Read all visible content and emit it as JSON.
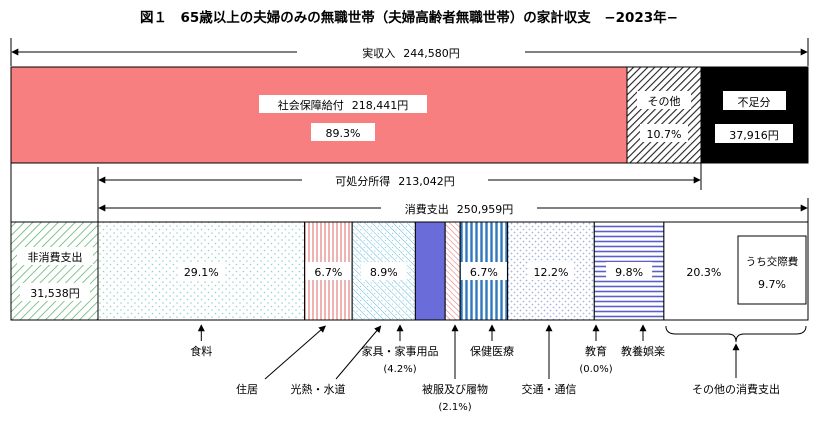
{
  "title": "図１　65歳以上の夫婦のみの無職世帯（夫婦高齢者無職世帯）の家計収支　−2023年−",
  "colors": {
    "social_security": "#f87f7f",
    "outline": "#000000",
    "deficit": "#000000",
    "transport": "#a9b3e0",
    "household_goods": "#6a6cd9",
    "medical": "#2f78c0",
    "non_consumption_hatch": "#4caa5c",
    "housing_hatch": "#e77f7f",
    "clothing_hatch": "#e77f7f",
    "utilities_hatch": "#5ab8d9",
    "culture_hatch": "#5b5fc7",
    "food_dots": "#8fd4cf",
    "other_hatch": "#222222"
  },
  "chart_data": {
    "type": "bar",
    "unit": "円",
    "income": {
      "label": "実収入",
      "amount_text": "244,580円",
      "amount": 244580,
      "segments": [
        {
          "key": "social_security",
          "label": "社会保障給付",
          "amount_text": "218,441円",
          "amount": 218441,
          "share_text": "89.3%",
          "share": 89.3
        },
        {
          "key": "other",
          "label": "その他",
          "share_text": "10.7%",
          "share": 10.7
        }
      ],
      "deficit": {
        "label": "不足分",
        "amount_text": "37,916円",
        "amount": 37916
      }
    },
    "disposable": {
      "label": "可処分所得",
      "amount_text": "213,042円",
      "amount": 213042
    },
    "expenditure": {
      "non_consumption": {
        "label": "非消費支出",
        "amount_text": "31,538円",
        "amount": 31538
      },
      "consumption": {
        "label": "消費支出",
        "amount_text": "250,959円",
        "amount": 250959,
        "segments": [
          {
            "key": "food",
            "label": "食料",
            "share_text": "29.1%",
            "share": 29.1
          },
          {
            "key": "housing",
            "label": "住居",
            "share_text": "6.7%",
            "share": 6.7
          },
          {
            "key": "utilities",
            "label": "光熱・水道",
            "share_text": "8.9%",
            "share": 8.9
          },
          {
            "key": "household_goods",
            "label": "家具・家事用品",
            "sub": "(4.2%)",
            "share_text": "",
            "share": 4.2
          },
          {
            "key": "clothing",
            "label": "被服及び履物",
            "sub": "(2.1%)",
            "share_text": "",
            "share": 2.1
          },
          {
            "key": "medical",
            "label": "保健医療",
            "share_text": "6.7%",
            "share": 6.7
          },
          {
            "key": "transport",
            "label": "交通・通信",
            "share_text": "12.2%",
            "share": 12.2
          },
          {
            "key": "education",
            "label": "教育",
            "sub": "(0.0%)",
            "share_text": "",
            "share": 0.0
          },
          {
            "key": "culture",
            "label": "教養娯楽",
            "share_text": "9.8%",
            "share": 9.8
          },
          {
            "key": "other_consumption",
            "label": "その他の消費支出",
            "share_text": "20.3%",
            "share": 20.3,
            "inner": {
              "label": "うち交際費",
              "share_text": "9.7%",
              "share": 9.7
            }
          }
        ]
      }
    }
  }
}
